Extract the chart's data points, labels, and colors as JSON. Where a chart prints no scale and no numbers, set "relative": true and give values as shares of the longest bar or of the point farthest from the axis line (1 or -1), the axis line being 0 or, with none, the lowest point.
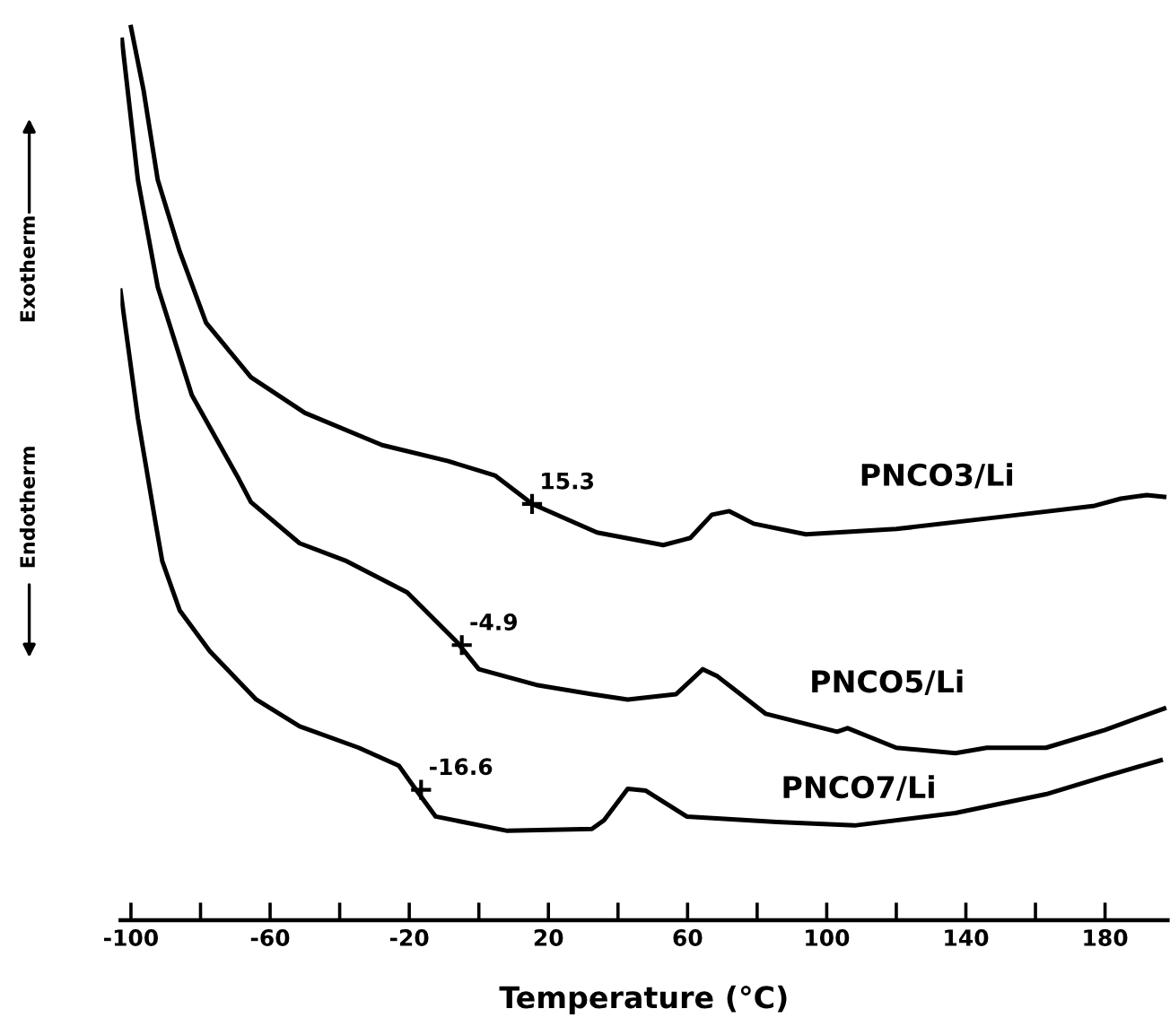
{
  "chart_data": {
    "type": "line",
    "relative": true,
    "xlabel": "Temperature (°C)",
    "xlim": [
      -103,
      198
    ],
    "xticks": [
      -100,
      {
        "value": -80,
        "label": null
      },
      -60,
      {
        "value": -40,
        "label": null
      },
      -20,
      {
        "value": 0,
        "label": null
      },
      20,
      {
        "value": 40,
        "label": null
      },
      60,
      {
        "value": 80,
        "label": null
      },
      100,
      {
        "value": 120,
        "label": null
      },
      140,
      {
        "value": 160,
        "label": null
      },
      180
    ],
    "series": [
      {
        "name": "PNCO3/Li",
        "color": "#000000",
        "x": [
          -100,
          -96.4,
          -92.3,
          -86,
          -78.4,
          -65.5,
          -50,
          -27.8,
          -8.8,
          4.6,
          15.4,
          34,
          53,
          60.8,
          67,
          72,
          79,
          94,
          120,
          151,
          177,
          184.5,
          192,
          197
        ],
        "values": [
          1.0,
          0.93,
          0.829,
          0.749,
          0.669,
          0.608,
          0.568,
          0.532,
          0.514,
          0.498,
          0.466,
          0.434,
          0.42,
          0.428,
          0.454,
          0.458,
          0.444,
          0.432,
          0.438,
          0.452,
          0.464,
          0.472,
          0.476,
          0.474
        ]
      },
      {
        "name": "PNCO5/Li",
        "color": "#000000",
        "x": [
          -102.6,
          -98,
          -92.3,
          -82.5,
          -69,
          -65.5,
          -51.5,
          -38,
          -20.6,
          -6.2,
          0,
          17,
          32.5,
          42.8,
          56.7,
          64.4,
          68.6,
          82.5,
          103,
          106,
          120,
          137,
          146,
          163,
          180,
          197
        ],
        "values": [
          0.986,
          0.829,
          0.709,
          0.588,
          0.494,
          0.468,
          0.422,
          0.402,
          0.367,
          0.311,
          0.281,
          0.263,
          0.253,
          0.247,
          0.253,
          0.281,
          0.273,
          0.231,
          0.211,
          0.215,
          0.193,
          0.187,
          0.193,
          0.193,
          0.213,
          0.237
        ]
      },
      {
        "name": "PNCO7/Li",
        "color": "#000000",
        "x": [
          -103,
          -98,
          -92.8,
          -91,
          -86,
          -77.3,
          -64,
          -51.5,
          -34.5,
          -23,
          -19,
          -12.4,
          8.2,
          32.5,
          36,
          42.8,
          48,
          59.8,
          85.6,
          108,
          137,
          163,
          180,
          196
        ],
        "values": [
          0.705,
          0.562,
          0.442,
          0.402,
          0.347,
          0.301,
          0.247,
          0.217,
          0.193,
          0.173,
          0.151,
          0.116,
          0.1,
          0.102,
          0.112,
          0.147,
          0.145,
          0.116,
          0.11,
          0.106,
          0.12,
          0.141,
          0.161,
          0.179
        ]
      }
    ],
    "annotations": [
      {
        "text": "15.3",
        "x": 15.3,
        "y": 0.466
      },
      {
        "text": "-4.9",
        "x": -4.9,
        "y": 0.308
      },
      {
        "text": "-16.6",
        "x": -16.6,
        "y": 0.146
      },
      "Exotherm",
      "Endotherm"
    ],
    "legend": false,
    "grid": false,
    "marker": "none",
    "line_style": "solid"
  }
}
